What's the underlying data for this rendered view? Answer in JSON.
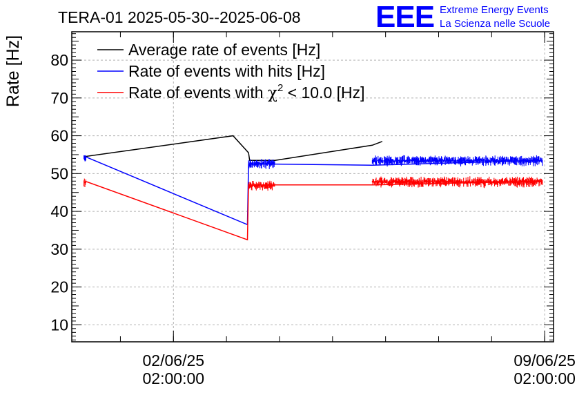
{
  "header": {
    "title": "TERA-01 2025-05-30--2025-06-08",
    "logo_text": "EEE",
    "org_line1": "Extreme Energy Events",
    "org_line2": "La Scienza nelle Scuole"
  },
  "colors": {
    "average": "#000000",
    "hits": "#0000ff",
    "chi2": "#ff0000",
    "logo": "#0000ff",
    "grid": "#b0b0b0"
  },
  "chart_data": {
    "type": "line",
    "title": "TERA-01 2025-05-30--2025-06-08",
    "ylabel": "Rate [Hz]",
    "xlabel": "",
    "ylim": [
      5.5,
      87.5
    ],
    "yticks": [
      10,
      20,
      30,
      40,
      50,
      60,
      70,
      80
    ],
    "x_unit": "days",
    "xlim": [
      "31/05/25 04:00",
      "09/06/25 06:00"
    ],
    "xticks": [
      {
        "x": "02/06/25 02:00:00",
        "label_date": "02/06/25",
        "label_time": "02:00:00"
      },
      {
        "x": "09/06/25 02:00:00",
        "label_date": "09/06/25",
        "label_time": "02:00:00"
      }
    ],
    "grid": true,
    "legend_position": "top-left",
    "series": [
      {
        "name": "Average rate of events [Hz]",
        "color_key": "average",
        "points": [
          [
            "31/05/25 10:00",
            54.5
          ],
          [
            "03/06/25 05:00",
            60.0
          ],
          [
            "03/06/25 12:00",
            55.5
          ],
          [
            "03/06/25 12:30",
            53.5
          ],
          [
            "04/06/25 00:00",
            53.5
          ],
          [
            "05/06/25 20:00",
            57.5
          ],
          [
            "06/06/25 00:30",
            58.5
          ]
        ]
      },
      {
        "name": "Rate of events with hits [Hz]",
        "color_key": "hits",
        "points": [
          [
            "31/05/25 10:00",
            54.5
          ],
          [
            "03/06/25 11:30",
            36.5
          ],
          [
            "03/06/25 12:00",
            52.5
          ],
          [
            "04/06/25 00:00",
            52.5
          ],
          [
            "05/06/25 20:00",
            52.2
          ],
          [
            "09/06/25 01:00",
            53.5
          ]
        ],
        "noisy_segments": [
          {
            "from": "31/05/25 09:30",
            "to": "31/05/25 10:30",
            "mean": 54.2,
            "spread": 1.5
          },
          {
            "from": "03/06/25 12:00",
            "to": "04/06/25 00:00",
            "mean": 52.8,
            "spread": 1.5
          },
          {
            "from": "05/06/25 20:00",
            "to": "09/06/25 01:00",
            "mean": 53.6,
            "spread": 1.6
          }
        ]
      },
      {
        "name": "Rate of events with χ² < 10.0 [Hz]",
        "color_key": "chi2",
        "points": [
          [
            "31/05/25 10:00",
            48.0
          ],
          [
            "03/06/25 11:30",
            32.5
          ],
          [
            "03/06/25 12:00",
            47.0
          ],
          [
            "04/06/25 00:00",
            47.0
          ],
          [
            "05/06/25 20:00",
            47.0
          ],
          [
            "09/06/25 01:00",
            48.0
          ]
        ],
        "noisy_segments": [
          {
            "from": "31/05/25 09:30",
            "to": "31/05/25 10:30",
            "mean": 47.8,
            "spread": 1.5
          },
          {
            "from": "03/06/25 12:00",
            "to": "04/06/25 00:00",
            "mean": 47.0,
            "spread": 1.5
          },
          {
            "from": "05/06/25 20:00",
            "to": "09/06/25 01:00",
            "mean": 48.0,
            "spread": 1.6
          }
        ]
      }
    ],
    "legend": [
      {
        "label_pre": "Average rate of events [Hz]",
        "color_key": "average"
      },
      {
        "label_pre": "Rate of events with hits [Hz]",
        "color_key": "hits"
      },
      {
        "label_pre": "Rate of events with ",
        "symbol": "χ",
        "sup": "2",
        "label_post": " < 10.0 [Hz]",
        "color_key": "chi2"
      }
    ]
  }
}
